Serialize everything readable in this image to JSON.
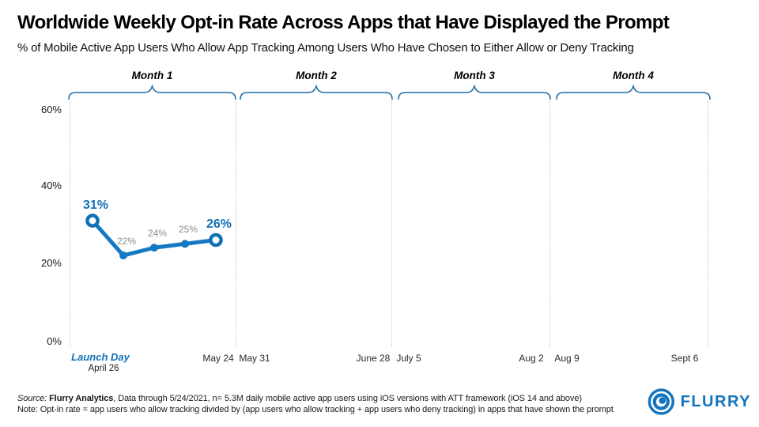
{
  "header": {
    "title": "Worldwide Weekly Opt-in Rate Across Apps that Have Displayed the Prompt",
    "subtitle": "% of Mobile Active App Users Who Allow App Tracking Among Users Who Have Chosen to Either Allow or Deny Tracking"
  },
  "months": [
    "Month 1",
    "Month 2",
    "Month 3",
    "Month 4"
  ],
  "chart_data": {
    "type": "line",
    "title": "Worldwide Weekly Opt-in Rate Across Apps that Have Displayed the Prompt",
    "subtitle": "% of Mobile Active App Users Who Allow App Tracking Among Users Who Have Chosen to Either Allow or Deny Tracking",
    "series": [
      {
        "name": "Weekly opt-in rate",
        "values": [
          31,
          22,
          24,
          25,
          26
        ],
        "point_labels": [
          "31%",
          "22%",
          "24%",
          "25%",
          "26%"
        ],
        "emphasized_points": [
          0,
          4
        ]
      }
    ],
    "x_first_point": "Launch Day, April 26",
    "x_last_point": "May 24",
    "yaxis": {
      "ticks": [
        "60%",
        "40%",
        "20%",
        "0%"
      ],
      "range": [
        0,
        60
      ],
      "grid": "vertical dotted month boundaries only"
    },
    "xaxis": {
      "launch": "Launch Day",
      "launch_date": "April 26",
      "dates": [
        "May 24",
        "May 31",
        "June 28",
        "July 5",
        "Aug 2",
        "Aug 9",
        "Sept 6"
      ]
    },
    "legend": "none",
    "month_groups": [
      "Month 1",
      "Month 2",
      "Month 3",
      "Month 4"
    ]
  },
  "footer": {
    "source_prefix": "Source: ",
    "source_bold": "Flurry Analytics",
    "source_rest": ", Data through 5/24/2021, n= 5.3M daily mobile active app users using iOS versions with ATT framework (iOS 14 and above)",
    "note": "Note: Opt-in rate = app users who allow tracking divided by (app users who allow tracking + app users who deny tracking) in apps that have shown the prompt"
  },
  "logo": {
    "text": "FLURRY"
  },
  "colors": {
    "accent": "#1070B6",
    "line": "#1579C2",
    "gray_label": "#8C8C8C",
    "grid": "#C4C4C4",
    "bracket": "#1E6FA8"
  }
}
